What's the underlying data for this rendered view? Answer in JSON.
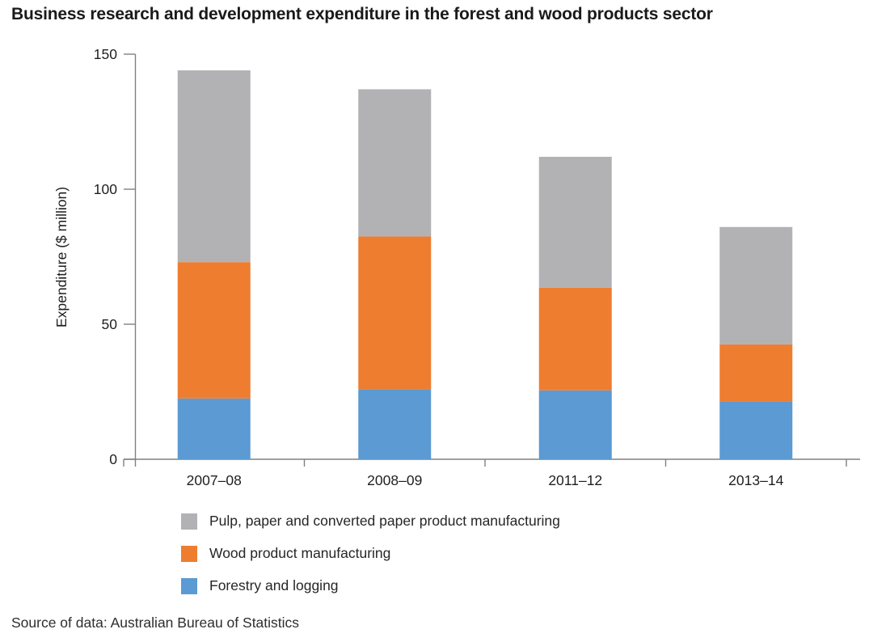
{
  "title": "Business research and development expenditure in the forest and wood products sector",
  "source": "Source of data: Australian Bureau of Statistics",
  "colors": {
    "pulp": "#b2b2b5",
    "wood": "#ee7d30",
    "forestry": "#5b9ad3",
    "axis": "#808080",
    "tick_text": "#1f1f1f",
    "title_text": "#1a1a1a"
  },
  "chart_data": {
    "type": "bar",
    "stacked": true,
    "title": "Business research and development expenditure in the forest and wood products sector",
    "categories": [
      "2007–08",
      "2008–09",
      "2011–12",
      "2013–14"
    ],
    "series": [
      {
        "name": "Forestry and logging",
        "color_key": "forestry",
        "values": [
          22.5,
          26,
          25.5,
          21.5
        ]
      },
      {
        "name": "Wood product manufacturing",
        "color_key": "wood",
        "values": [
          50.5,
          56.5,
          38,
          21
        ]
      },
      {
        "name": "Pulp, paper and converted paper product manufacturing",
        "color_key": "pulp",
        "values": [
          71,
          54.5,
          48.5,
          43.5
        ]
      }
    ],
    "totals": [
      144,
      137,
      112,
      86
    ],
    "xlabel": "",
    "ylabel": "Expenditure ($ million)",
    "yticks": [
      0,
      50,
      100,
      150
    ],
    "ylim": [
      0,
      150
    ],
    "grid": false,
    "legend_position": "bottom",
    "legend_order": [
      "Pulp, paper and converted paper product manufacturing",
      "Wood product manufacturing",
      "Forestry and logging"
    ]
  }
}
